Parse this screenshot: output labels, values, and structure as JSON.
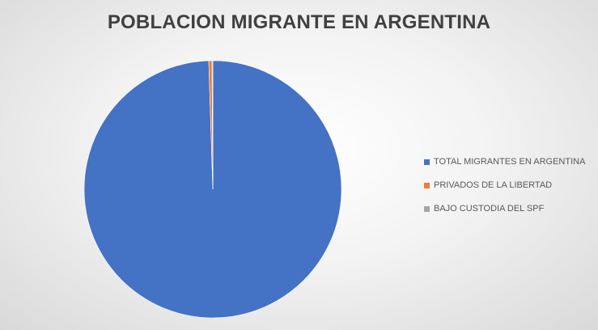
{
  "chart_data": {
    "type": "pie",
    "title": "POBLACION MIGRANTE EN ARGENTINA",
    "categories": [
      "TOTAL MIGRANTES EN ARGENTINA",
      "PRIVADOS DE LA LIBERTAD",
      "BAJO CUSTODIA DEL SPF"
    ],
    "values": [
      99.5,
      0.4,
      0.1
    ],
    "colors": [
      "#4472c4",
      "#ed7d31",
      "#a5a5a5"
    ],
    "legend_position": "right"
  }
}
